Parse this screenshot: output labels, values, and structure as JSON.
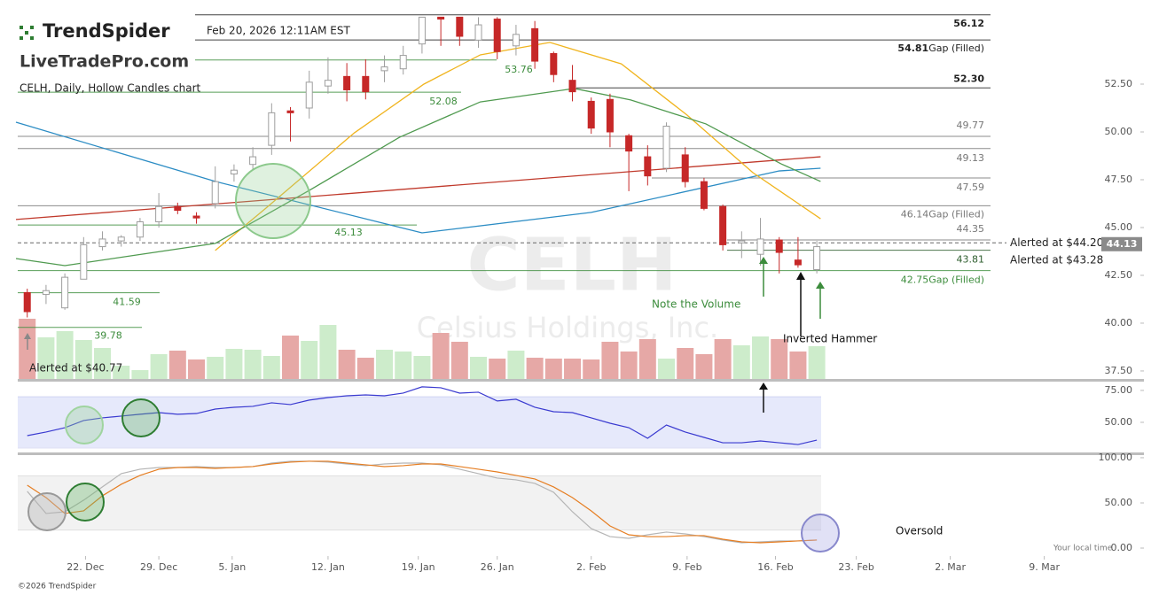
{
  "header": {
    "brand": "TrendSpider",
    "site": "LiveTradePro.com",
    "timestamp": "Feb 20, 2026 12:11AM EST",
    "chart_name": "CELH, Daily, Hollow Candles chart",
    "watermark_ticker": "CELH",
    "watermark_company": "Celsius Holdings, Inc."
  },
  "chart_data": {
    "type": "candlestick",
    "open": [
      41.6,
      41.5,
      40.8,
      42.3,
      44.0,
      44.3,
      44.5,
      45.3,
      46.1,
      45.6,
      46.25,
      47.8,
      48.3,
      49.3,
      51.1,
      51.25,
      52.4,
      52.9,
      52.9,
      53.2,
      53.3,
      54.6,
      56.0,
      56.0,
      54.8,
      55.9,
      54.5,
      55.4,
      54.1,
      52.7,
      51.6,
      51.7,
      49.8,
      48.7,
      48.1,
      48.8,
      47.4,
      46.1,
      44.2,
      43.6,
      44.35,
      43.3,
      42.8
    ],
    "high": [
      41.8,
      42.0,
      42.6,
      44.5,
      44.8,
      44.6,
      45.5,
      46.8,
      46.3,
      45.8,
      48.2,
      48.3,
      49.2,
      51.5,
      51.3,
      53.2,
      53.9,
      53.6,
      53.8,
      54.0,
      54.5,
      56.0,
      56.0,
      56.0,
      56.0,
      56.0,
      55.6,
      55.8,
      54.2,
      53.5,
      51.8,
      52.0,
      49.9,
      49.3,
      50.5,
      49.2,
      47.6,
      46.2,
      44.8,
      45.5,
      44.5,
      44.5,
      44.3
    ],
    "low": [
      40.3,
      41.0,
      40.7,
      42.3,
      43.8,
      44.0,
      44.3,
      45.0,
      45.7,
      45.2,
      46.0,
      47.4,
      48.0,
      48.8,
      49.5,
      50.7,
      52.0,
      51.6,
      51.7,
      52.6,
      53.0,
      54.1,
      54.5,
      54.5,
      54.4,
      53.8,
      54.0,
      53.3,
      52.6,
      51.6,
      49.9,
      49.2,
      46.9,
      47.2,
      47.9,
      47.1,
      45.9,
      43.8,
      43.4,
      43.0,
      42.6,
      42.9,
      42.6
    ],
    "close": [
      40.6,
      41.7,
      42.4,
      44.1,
      44.4,
      44.5,
      45.3,
      46.1,
      45.9,
      45.5,
      47.4,
      48.0,
      48.7,
      51.0,
      51.0,
      52.6,
      52.7,
      52.2,
      52.1,
      53.4,
      54.0,
      56.0,
      55.9,
      55.0,
      55.6,
      54.2,
      55.1,
      53.7,
      53.0,
      52.1,
      50.2,
      50.0,
      49.0,
      47.7,
      50.3,
      47.4,
      46.0,
      44.1,
      44.3,
      44.4,
      43.7,
      43.05,
      44.0
    ],
    "up_color": "#9e9e9e",
    "down_color": "#c62828",
    "ylim": [
      37.1,
      56
    ],
    "yticks": [
      {
        "value": 52.5,
        "label": "52.50"
      },
      {
        "value": 50,
        "label": "50.00"
      },
      {
        "value": 47.5,
        "label": "47.50"
      },
      {
        "value": 45,
        "label": "45.00"
      },
      {
        "value": 42.5,
        "label": "42.50"
      },
      {
        "value": 40,
        "label": "40.00"
      },
      {
        "value": 37.5,
        "label": "37.50"
      }
    ],
    "xlim": [
      -0.6,
      59.4
    ],
    "xticks": [
      {
        "value": 3.1,
        "label": "22. Dec"
      },
      {
        "value": 7.0,
        "label": "29. Dec"
      },
      {
        "value": 10.9,
        "label": "5. Jan"
      },
      {
        "value": 16.0,
        "label": "12. Jan"
      },
      {
        "value": 20.8,
        "label": "19. Jan"
      },
      {
        "value": 25.0,
        "label": "26. Jan"
      },
      {
        "value": 30.0,
        "label": "2. Feb"
      },
      {
        "value": 35.1,
        "label": "9. Feb"
      },
      {
        "value": 39.8,
        "label": "16. Feb"
      },
      {
        "value": 44.1,
        "label": "23. Feb"
      },
      {
        "value": 49.1,
        "label": "2. Mar"
      },
      {
        "value": 54.1,
        "label": "9. Mar"
      }
    ],
    "last_price": 44.13,
    "moving_averages": [
      {
        "color": "#2b8cc4",
        "x": [
          -0.6,
          10,
          21,
          30,
          40,
          42.2
        ],
        "values": [
          50.51,
          47.41,
          44.72,
          45.79,
          47.96,
          48.1
        ]
      },
      {
        "color": "#c0392b",
        "x": [
          -0.6,
          42.2
        ],
        "values": [
          45.42,
          48.7
        ]
      },
      {
        "color": "#f0b41e",
        "x": [
          10,
          12.7,
          17.4,
          21.1,
          24.1,
          27.8,
          31.6,
          35.1,
          38.6,
          42.2
        ],
        "values": [
          43.8,
          46.02,
          49.95,
          52.5,
          54.03,
          54.68,
          53.56,
          50.88,
          47.87,
          45.46
        ]
      },
      {
        "color": "#4f9a4f",
        "x": [
          -0.6,
          2.0,
          10,
          15.0,
          19.8,
          24.1,
          29.1,
          32.1,
          36.1,
          40.1,
          42.2
        ],
        "values": [
          43.38,
          43.01,
          44.17,
          46.94,
          49.72,
          51.57,
          52.27,
          51.67,
          50.42,
          48.33,
          47.41
        ]
      }
    ],
    "levels": [
      {
        "value": 56.12,
        "color": "#222222"
      },
      {
        "value": 54.81,
        "note": "Gap (Filled)",
        "color": "#222222"
      },
      {
        "value": 53.76,
        "color": "#3c8c3c"
      },
      {
        "value": 52.3,
        "label": "52.30",
        "color": "#222222"
      },
      {
        "value": 52.08,
        "color": "#3c8c3c"
      },
      {
        "value": 49.77,
        "color": "#777777"
      },
      {
        "value": 49.13,
        "color": "#777777"
      },
      {
        "value": 47.59,
        "color": "#777777"
      },
      {
        "value": 46.14,
        "note": "Gap (Filled)",
        "color": "#777777"
      },
      {
        "value": 45.13,
        "color": "#3c8c3c"
      },
      {
        "value": 44.35,
        "color": "#777777"
      },
      {
        "value": 43.81,
        "color": "#2e5e2e"
      },
      {
        "value": 42.75,
        "note": "Gap (Filled)",
        "color": "#3c8c3c"
      },
      {
        "value": 41.59,
        "color": "#3c8c3c"
      },
      {
        "value": 39.78,
        "color": "#3c8c3c"
      }
    ],
    "alerts": [
      {
        "value": 44.2,
        "label": "Alerted at $44.20",
        "line": true
      },
      {
        "value": 43.28,
        "label": "Alerted at $43.28"
      },
      {
        "value": 40.77,
        "label": "Alerted at $40.77"
      }
    ],
    "annotations": [
      "Note the Volume",
      "Inverted Hammer",
      "Oversold"
    ],
    "volume": {
      "values": [
        68,
        47,
        54,
        44,
        35,
        15,
        10,
        28,
        32,
        22,
        25,
        34,
        33,
        26,
        49,
        43,
        61,
        33,
        24,
        33,
        31,
        26,
        52,
        42,
        25,
        23,
        32,
        24,
        23,
        23,
        22,
        42,
        31,
        45,
        23,
        35,
        28,
        45,
        38,
        48,
        45,
        31,
        37
      ],
      "ylim": [
        0,
        75
      ],
      "up_color": "#cdeccb",
      "down_color": "#e6a8a6"
    },
    "rsi": {
      "color": "#3a3ad0",
      "values": [
        39.6,
        42.4,
        45.8,
        51.4,
        53.5,
        54.9,
        56.3,
        57.6,
        56.3,
        56.9,
        60.4,
        61.8,
        62.5,
        65.3,
        63.9,
        67.4,
        69.4,
        70.8,
        71.5,
        70.8,
        72.9,
        77.8,
        77.1,
        72.9,
        73.6,
        66.7,
        68.1,
        61.8,
        58.3,
        57.6,
        53.5,
        49.3,
        45.8,
        37.5,
        47.9,
        42.4,
        38.2,
        34.0,
        34.0,
        35.4,
        34.0,
        32.6,
        36.1
      ],
      "ylim": [
        27.1,
        81.2
      ],
      "yticks": [
        {
          "value": 75,
          "label": "75.00"
        },
        {
          "value": 50,
          "label": "50.00"
        }
      ],
      "band": [
        30,
        70
      ]
    },
    "stochastic": {
      "series": [
        {
          "color": "#b5b5b5",
          "values": [
            62.8,
            38.3,
            40.2,
            53.0,
            67.7,
            82.4,
            87.3,
            89.2,
            89.2,
            90.2,
            89.2,
            89.2,
            90.2,
            94.1,
            96.1,
            96.1,
            95.1,
            93.1,
            91.2,
            93.1,
            94.1,
            94.1,
            92.2,
            87.3,
            82.4,
            77.5,
            75.5,
            71.6,
            61.8,
            40.2,
            21.6,
            12.7,
            10.8,
            14.7,
            17.7,
            15.7,
            12.7,
            8.9,
            5.9,
            6.9,
            7.9,
            7.9,
            8.9
          ]
        },
        {
          "color": "#e67e22",
          "values": [
            69.6,
            55.9,
            38.3,
            41.2,
            57.9,
            70.6,
            80.4,
            87.3,
            89.2,
            89.2,
            88.2,
            89.2,
            90.2,
            93.1,
            95.1,
            96.1,
            96.1,
            94.1,
            92.2,
            90.2,
            91.2,
            93.1,
            93.1,
            90.2,
            87.3,
            84.3,
            80.4,
            76.5,
            67.7,
            55.9,
            41.2,
            24.5,
            14.7,
            12.7,
            12.7,
            13.8,
            13.8,
            9.8,
            6.9,
            5.9,
            6.9,
            7.9,
            8.9
          ]
        }
      ],
      "ylim": [
        -8.8,
        102.9
      ],
      "yticks": [
        {
          "value": 100,
          "label": "100.00"
        },
        {
          "value": 50,
          "label": "50.00"
        },
        {
          "value": 0,
          "label": "0.00"
        }
      ],
      "band": [
        20,
        80
      ]
    }
  },
  "footer": {
    "local_time": "Your local time",
    "copyright": "©2026 TrendSpider"
  }
}
